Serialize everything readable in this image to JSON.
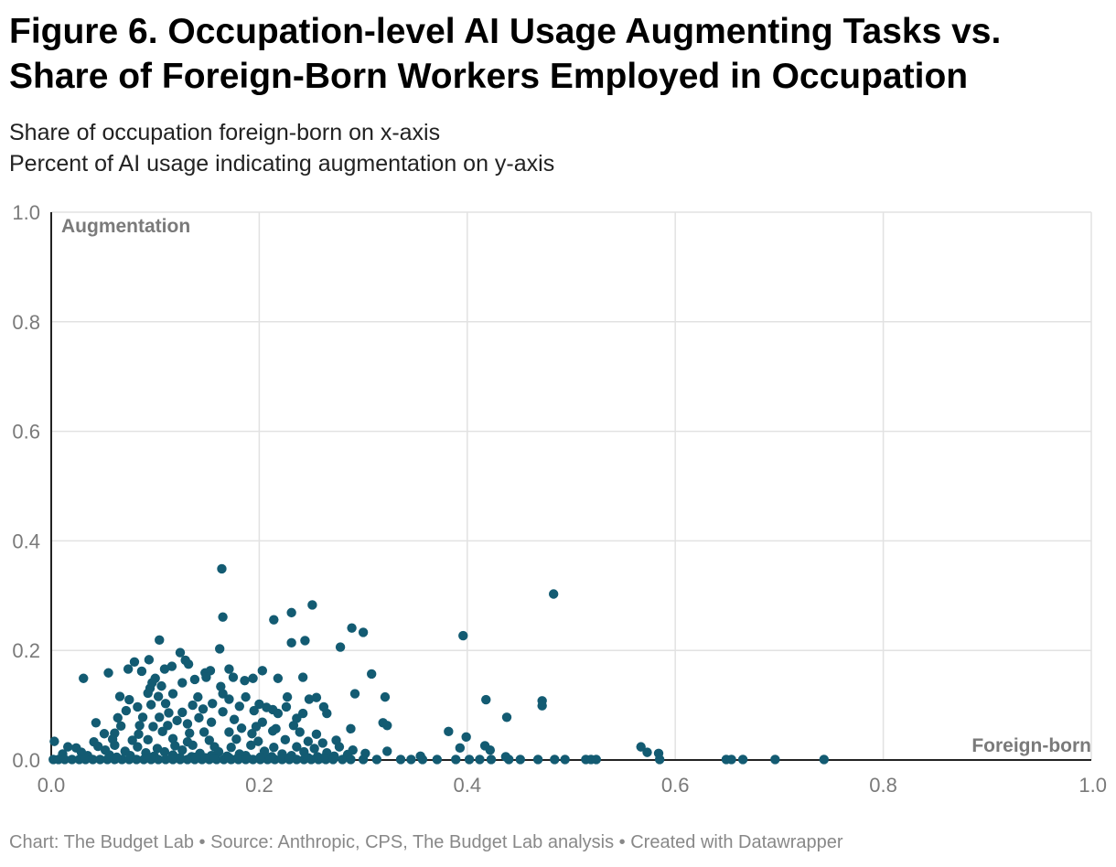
{
  "header": {
    "title": "Figure 6. Occupation-level AI Usage Augmenting Tasks vs. Share of Foreign-Born Workers Employed in Occupation",
    "subtitle_line1": "Share of occupation foreign-born on x-axis",
    "subtitle_line2": "Percent of AI usage indicating augmentation on y-axis"
  },
  "footer": {
    "credit": "Chart: The Budget Lab • Source: Anthropic, CPS, The Budget Lab analysis • Created with Datawrapper"
  },
  "chart_data": {
    "type": "scatter",
    "xlim": [
      0,
      1
    ],
    "ylim": [
      0,
      1
    ],
    "x_ticks": [
      "0.0",
      "0.2",
      "0.4",
      "0.6",
      "0.8",
      "1.0"
    ],
    "y_ticks": [
      "0.0",
      "0.2",
      "0.4",
      "0.6",
      "0.8",
      "1.0"
    ],
    "y_corner_label": "Augmentation",
    "x_corner_label": "Foreign-born",
    "grid": true,
    "point_color": "#135b72",
    "points": [
      [
        0.164,
        0.349
      ],
      [
        0.483,
        0.303
      ],
      [
        0.251,
        0.283
      ],
      [
        0.231,
        0.269
      ],
      [
        0.165,
        0.261
      ],
      [
        0.214,
        0.256
      ],
      [
        0.289,
        0.241
      ],
      [
        0.3,
        0.233
      ],
      [
        0.396,
        0.227
      ],
      [
        0.104,
        0.219
      ],
      [
        0.244,
        0.218
      ],
      [
        0.231,
        0.214
      ],
      [
        0.162,
        0.203
      ],
      [
        0.278,
        0.206
      ],
      [
        0.124,
        0.196
      ],
      [
        0.129,
        0.182
      ],
      [
        0.094,
        0.183
      ],
      [
        0.08,
        0.179
      ],
      [
        0.116,
        0.171
      ],
      [
        0.132,
        0.175
      ],
      [
        0.109,
        0.166
      ],
      [
        0.148,
        0.159
      ],
      [
        0.153,
        0.163
      ],
      [
        0.087,
        0.162
      ],
      [
        0.055,
        0.159
      ],
      [
        0.074,
        0.166
      ],
      [
        0.171,
        0.166
      ],
      [
        0.203,
        0.163
      ],
      [
        0.308,
        0.157
      ],
      [
        0.031,
        0.149
      ],
      [
        0.1,
        0.149
      ],
      [
        0.097,
        0.141
      ],
      [
        0.126,
        0.141
      ],
      [
        0.138,
        0.147
      ],
      [
        0.149,
        0.151
      ],
      [
        0.175,
        0.151
      ],
      [
        0.186,
        0.145
      ],
      [
        0.194,
        0.149
      ],
      [
        0.218,
        0.149
      ],
      [
        0.242,
        0.151
      ],
      [
        0.163,
        0.134
      ],
      [
        0.095,
        0.131
      ],
      [
        0.106,
        0.135
      ],
      [
        0.165,
        0.121
      ],
      [
        0.093,
        0.122
      ],
      [
        0.103,
        0.116
      ],
      [
        0.117,
        0.121
      ],
      [
        0.141,
        0.115
      ],
      [
        0.292,
        0.121
      ],
      [
        0.066,
        0.116
      ],
      [
        0.171,
        0.111
      ],
      [
        0.187,
        0.115
      ],
      [
        0.227,
        0.115
      ],
      [
        0.248,
        0.111
      ],
      [
        0.255,
        0.114
      ],
      [
        0.418,
        0.11
      ],
      [
        0.472,
        0.108
      ],
      [
        0.321,
        0.115
      ],
      [
        0.075,
        0.11
      ],
      [
        0.083,
        0.097
      ],
      [
        0.096,
        0.101
      ],
      [
        0.11,
        0.103
      ],
      [
        0.136,
        0.1
      ],
      [
        0.155,
        0.103
      ],
      [
        0.181,
        0.098
      ],
      [
        0.2,
        0.102
      ],
      [
        0.213,
        0.092
      ],
      [
        0.226,
        0.097
      ],
      [
        0.242,
        0.085
      ],
      [
        0.262,
        0.097
      ],
      [
        0.265,
        0.085
      ],
      [
        0.472,
        0.099
      ],
      [
        0.072,
        0.09
      ],
      [
        0.113,
        0.086
      ],
      [
        0.126,
        0.087
      ],
      [
        0.146,
        0.093
      ],
      [
        0.165,
        0.088
      ],
      [
        0.195,
        0.09
      ],
      [
        0.207,
        0.096
      ],
      [
        0.218,
        0.085
      ],
      [
        0.438,
        0.078
      ],
      [
        0.043,
        0.068
      ],
      [
        0.064,
        0.077
      ],
      [
        0.088,
        0.078
      ],
      [
        0.104,
        0.078
      ],
      [
        0.121,
        0.072
      ],
      [
        0.142,
        0.077
      ],
      [
        0.176,
        0.074
      ],
      [
        0.203,
        0.069
      ],
      [
        0.236,
        0.076
      ],
      [
        0.319,
        0.068
      ],
      [
        0.323,
        0.063
      ],
      [
        0.067,
        0.062
      ],
      [
        0.085,
        0.063
      ],
      [
        0.098,
        0.061
      ],
      [
        0.112,
        0.063
      ],
      [
        0.131,
        0.066
      ],
      [
        0.154,
        0.069
      ],
      [
        0.183,
        0.058
      ],
      [
        0.197,
        0.061
      ],
      [
        0.216,
        0.057
      ],
      [
        0.233,
        0.063
      ],
      [
        0.288,
        0.057
      ],
      [
        0.382,
        0.052
      ],
      [
        0.051,
        0.048
      ],
      [
        0.061,
        0.049
      ],
      [
        0.084,
        0.047
      ],
      [
        0.107,
        0.052
      ],
      [
        0.133,
        0.049
      ],
      [
        0.147,
        0.051
      ],
      [
        0.171,
        0.051
      ],
      [
        0.193,
        0.048
      ],
      [
        0.213,
        0.053
      ],
      [
        0.239,
        0.051
      ],
      [
        0.255,
        0.047
      ],
      [
        0.399,
        0.042
      ],
      [
        0.041,
        0.033
      ],
      [
        0.059,
        0.038
      ],
      [
        0.078,
        0.036
      ],
      [
        0.093,
        0.037
      ],
      [
        0.117,
        0.039
      ],
      [
        0.131,
        0.033
      ],
      [
        0.152,
        0.036
      ],
      [
        0.178,
        0.038
      ],
      [
        0.199,
        0.034
      ],
      [
        0.225,
        0.037
      ],
      [
        0.247,
        0.034
      ],
      [
        0.261,
        0.031
      ],
      [
        0.274,
        0.036
      ],
      [
        0.003,
        0.034
      ],
      [
        0.045,
        0.025
      ],
      [
        0.061,
        0.027
      ],
      [
        0.083,
        0.024
      ],
      [
        0.102,
        0.021
      ],
      [
        0.119,
        0.026
      ],
      [
        0.136,
        0.027
      ],
      [
        0.157,
        0.024
      ],
      [
        0.173,
        0.023
      ],
      [
        0.192,
        0.027
      ],
      [
        0.214,
        0.023
      ],
      [
        0.236,
        0.024
      ],
      [
        0.253,
        0.021
      ],
      [
        0.277,
        0.024
      ],
      [
        0.29,
        0.018
      ],
      [
        0.323,
        0.016
      ],
      [
        0.393,
        0.022
      ],
      [
        0.417,
        0.026
      ],
      [
        0.422,
        0.018
      ],
      [
        0.567,
        0.024
      ],
      [
        0.573,
        0.014
      ],
      [
        0.584,
        0.012
      ],
      [
        0.016,
        0.024
      ],
      [
        0.024,
        0.022
      ],
      [
        0.029,
        0.014
      ],
      [
        0.052,
        0.018
      ],
      [
        0.071,
        0.016
      ],
      [
        0.091,
        0.013
      ],
      [
        0.109,
        0.015
      ],
      [
        0.126,
        0.018
      ],
      [
        0.143,
        0.012
      ],
      [
        0.161,
        0.015
      ],
      [
        0.181,
        0.011
      ],
      [
        0.205,
        0.016
      ],
      [
        0.222,
        0.011
      ],
      [
        0.243,
        0.015
      ],
      [
        0.265,
        0.013
      ],
      [
        0.285,
        0.01
      ],
      [
        0.302,
        0.012
      ],
      [
        0.011,
        0.011
      ],
      [
        0.035,
        0.008
      ],
      [
        0.056,
        0.009
      ],
      [
        0.076,
        0.008
      ],
      [
        0.099,
        0.007
      ],
      [
        0.117,
        0.009
      ],
      [
        0.135,
        0.006
      ],
      [
        0.154,
        0.008
      ],
      [
        0.169,
        0.007
      ],
      [
        0.187,
        0.008
      ],
      [
        0.212,
        0.006
      ],
      [
        0.231,
        0.008
      ],
      [
        0.256,
        0.006
      ],
      [
        0.272,
        0.007
      ],
      [
        0.355,
        0.007
      ],
      [
        0.437,
        0.006
      ],
      [
        0.002,
        0.001
      ],
      [
        0.007,
        0.001
      ],
      [
        0.013,
        0.001
      ],
      [
        0.02,
        0.001
      ],
      [
        0.027,
        0.001
      ],
      [
        0.033,
        0.001
      ],
      [
        0.04,
        0.001
      ],
      [
        0.047,
        0.001
      ],
      [
        0.054,
        0.001
      ],
      [
        0.061,
        0.001
      ],
      [
        0.068,
        0.001
      ],
      [
        0.075,
        0.001
      ],
      [
        0.082,
        0.001
      ],
      [
        0.089,
        0.001
      ],
      [
        0.096,
        0.001
      ],
      [
        0.103,
        0.001
      ],
      [
        0.11,
        0.001
      ],
      [
        0.117,
        0.001
      ],
      [
        0.124,
        0.001
      ],
      [
        0.131,
        0.001
      ],
      [
        0.138,
        0.001
      ],
      [
        0.145,
        0.001
      ],
      [
        0.152,
        0.001
      ],
      [
        0.159,
        0.001
      ],
      [
        0.166,
        0.001
      ],
      [
        0.173,
        0.001
      ],
      [
        0.18,
        0.001
      ],
      [
        0.187,
        0.001
      ],
      [
        0.194,
        0.001
      ],
      [
        0.201,
        0.001
      ],
      [
        0.208,
        0.001
      ],
      [
        0.215,
        0.001
      ],
      [
        0.222,
        0.001
      ],
      [
        0.229,
        0.001
      ],
      [
        0.236,
        0.001
      ],
      [
        0.243,
        0.001
      ],
      [
        0.25,
        0.001
      ],
      [
        0.257,
        0.001
      ],
      [
        0.264,
        0.001
      ],
      [
        0.271,
        0.001
      ],
      [
        0.28,
        0.001
      ],
      [
        0.288,
        0.001
      ],
      [
        0.3,
        0.001
      ],
      [
        0.313,
        0.001
      ],
      [
        0.336,
        0.001
      ],
      [
        0.346,
        0.001
      ],
      [
        0.357,
        0.001
      ],
      [
        0.371,
        0.001
      ],
      [
        0.389,
        0.001
      ],
      [
        0.402,
        0.001
      ],
      [
        0.412,
        0.001
      ],
      [
        0.423,
        0.001
      ],
      [
        0.44,
        0.001
      ],
      [
        0.451,
        0.001
      ],
      [
        0.468,
        0.001
      ],
      [
        0.484,
        0.001
      ],
      [
        0.494,
        0.001
      ],
      [
        0.514,
        0.001
      ],
      [
        0.519,
        0.001
      ],
      [
        0.524,
        0.001
      ],
      [
        0.585,
        0.001
      ],
      [
        0.649,
        0.001
      ],
      [
        0.654,
        0.001
      ],
      [
        0.665,
        0.001
      ],
      [
        0.696,
        0.001
      ],
      [
        0.743,
        0.001
      ],
      [
        0.063,
        0.005
      ],
      [
        0.095,
        0.004
      ],
      [
        0.148,
        0.004
      ],
      [
        0.201,
        0.005
      ],
      [
        0.247,
        0.004
      ],
      [
        0.116,
        0.003
      ],
      [
        0.179,
        0.003
      ],
      [
        0.228,
        0.003
      ],
      [
        0.261,
        0.003
      ],
      [
        0.139,
        0.005
      ],
      [
        0.171,
        0.004
      ],
      [
        0.189,
        0.003
      ],
      [
        0.157,
        0.003
      ],
      [
        0.211,
        0.003
      ],
      [
        0.124,
        0.004
      ]
    ]
  }
}
